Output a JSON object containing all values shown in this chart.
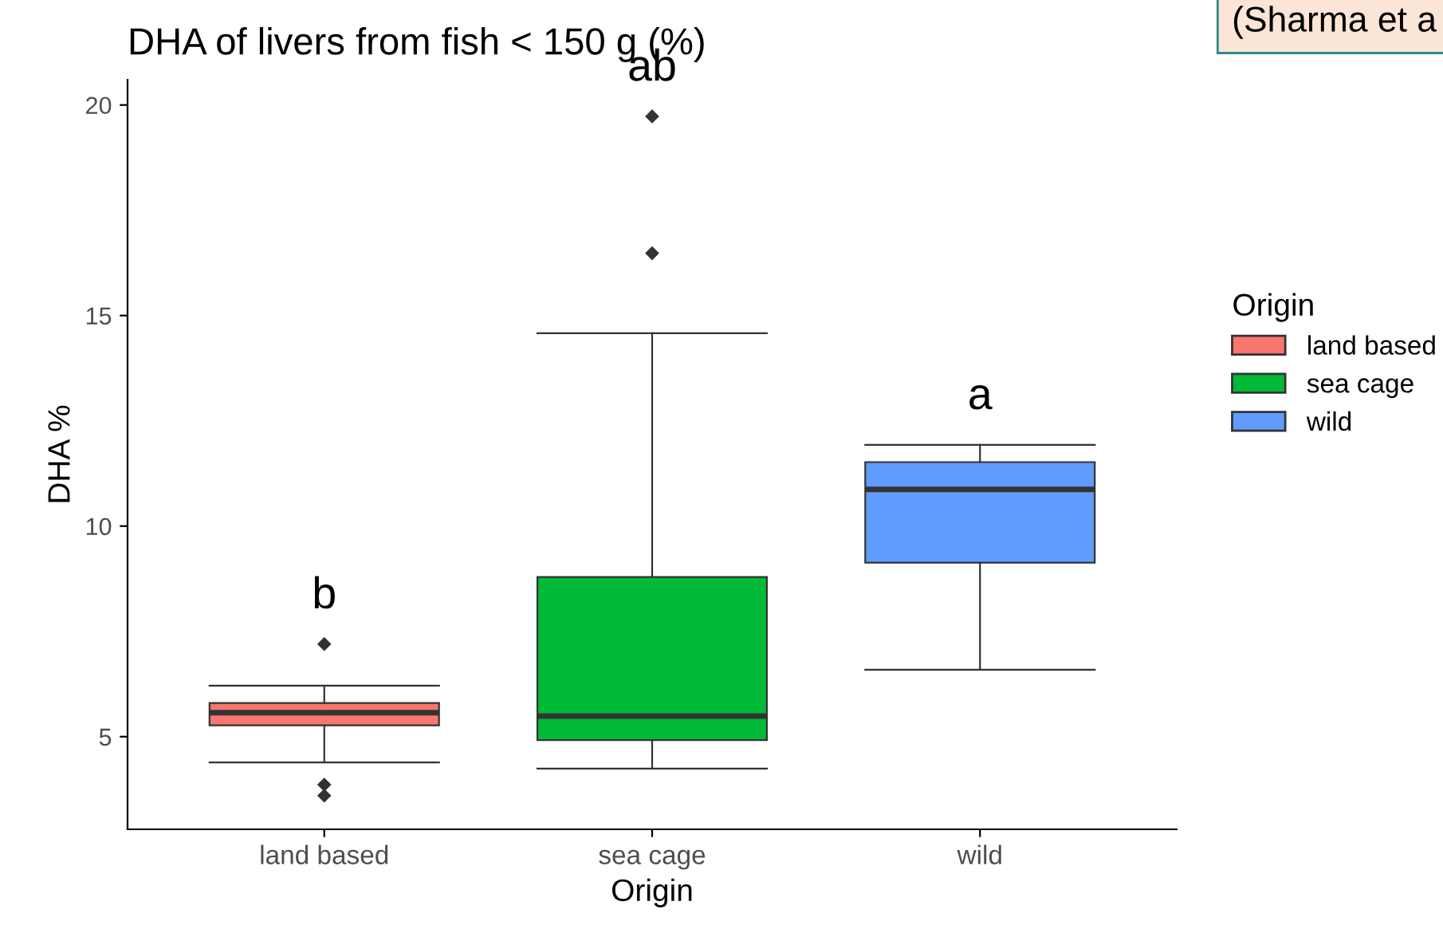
{
  "chart_data": {
    "type": "box",
    "title": "DHA of livers from fish < 150 g (%)",
    "xlabel": "Origin",
    "ylabel": "DHA %",
    "legend_title": "Origin",
    "legend": "right",
    "grid": false,
    "categories": [
      "land based",
      "sea cage",
      "wild"
    ],
    "ylim": [
      2.8,
      20.6
    ],
    "yticks": [
      5,
      10,
      15,
      20
    ],
    "series": [
      {
        "name": "land based",
        "color": "#f8766d",
        "boxes": [
          {
            "low": 4.39,
            "q1": 5.27,
            "median": 5.57,
            "q3": 5.8,
            "high": 6.21,
            "outliers": [
              7.2,
              3.86,
              3.6
            ]
          },
          null,
          null
        ]
      },
      {
        "name": "sea cage",
        "color": "#00ba38",
        "boxes": [
          null,
          {
            "low": 4.24,
            "q1": 4.92,
            "median": 5.49,
            "q3": 8.79,
            "high": 14.58,
            "outliers": [
              16.48,
              19.73
            ]
          },
          null
        ]
      },
      {
        "name": "wild",
        "color": "#619cff",
        "boxes": [
          null,
          null,
          {
            "low": 6.59,
            "q1": 9.13,
            "median": 10.87,
            "q3": 11.52,
            "high": 11.93
          }
        ]
      }
    ],
    "annotations": [
      "b",
      "ab",
      "a",
      "(Sharma et a"
    ]
  }
}
